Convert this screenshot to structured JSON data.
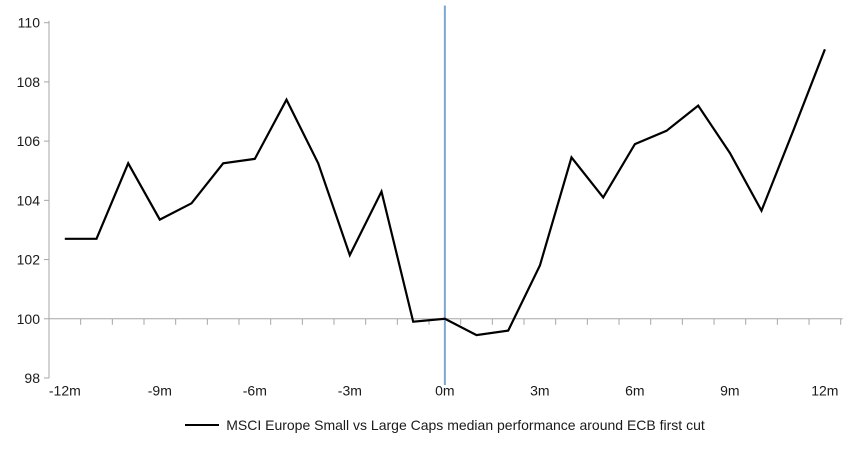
{
  "legend": {
    "label": "MSCI Europe Small vs Large Caps median performance around ECB first cut"
  },
  "chart_data": {
    "type": "line",
    "title": "",
    "categories": [
      "-12m",
      "-11m",
      "-10m",
      "-9m",
      "-8m",
      "-7m",
      "-6m",
      "-5m",
      "-4m",
      "-3m",
      "-2m",
      "-1m",
      "0m",
      "1m",
      "2m",
      "3m",
      "4m",
      "5m",
      "6m",
      "7m",
      "8m",
      "9m",
      "10m",
      "11m",
      "12m"
    ],
    "series": [
      {
        "name": "MSCI Europe Small vs Large Caps median performance around ECB first cut",
        "color": "#000000",
        "values": [
          102.7,
          102.7,
          105.25,
          103.35,
          103.9,
          105.25,
          105.4,
          107.4,
          105.25,
          102.15,
          104.3,
          99.9,
          100.0,
          99.45,
          99.6,
          101.8,
          105.45,
          104.1,
          105.9,
          106.35,
          107.2,
          105.6,
          103.65,
          106.35,
          109.1
        ]
      }
    ],
    "ylim": [
      98,
      110
    ],
    "y_ticks": [
      98,
      100,
      102,
      104,
      106,
      108,
      110
    ],
    "visible_x_tick_labels": [
      "-12m",
      "-9m",
      "-6m",
      "-3m",
      "0m",
      "3m",
      "6m",
      "9m",
      "12m"
    ],
    "x_label_interval": 3,
    "baseline_value": 100,
    "event_line": {
      "category": "0m",
      "color": "#7DA7D1"
    },
    "grid": "off",
    "legend_position": "bottom-center",
    "colors": {
      "axis": "#A6A6A6",
      "baseline": "#A6A6A6",
      "series": "#000000",
      "event_line": "#7DA7D1",
      "text": "#1A1A1A"
    }
  }
}
